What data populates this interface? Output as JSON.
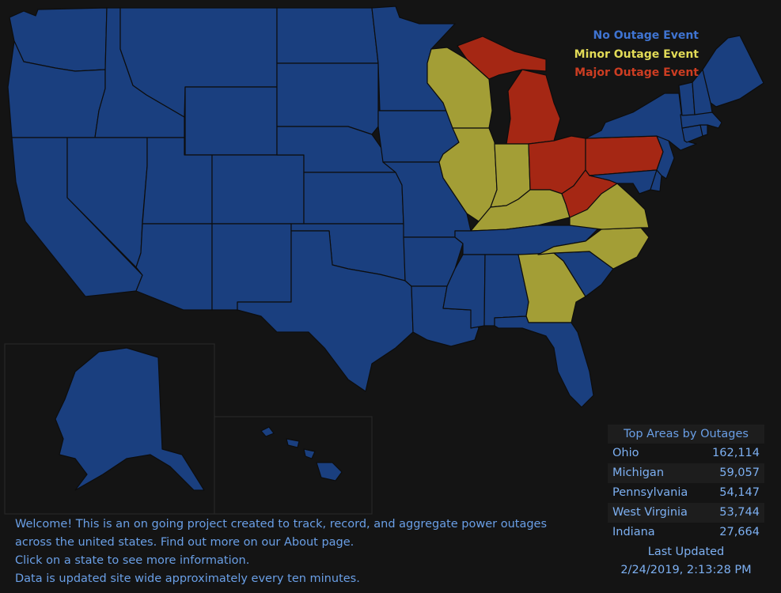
{
  "legend": {
    "none_label": "No Outage Event",
    "minor_label": "Minor Outage Event",
    "major_label": "Major Outage Event"
  },
  "colors": {
    "background": "#141414",
    "none": "#1a3f7f",
    "minor": "#a39e36",
    "major": "#a52714",
    "legend_none": "#3f74d2",
    "legend_minor": "#e2db57",
    "legend_major": "#cd3d22"
  },
  "top_areas": {
    "title": "Top Areas by Outages",
    "rows": [
      {
        "area": "Ohio",
        "outages": "162,114"
      },
      {
        "area": "Michigan",
        "outages": "59,057"
      },
      {
        "area": "Pennsylvania",
        "outages": "54,147"
      },
      {
        "area": "West Virginia",
        "outages": "53,744"
      },
      {
        "area": "Indiana",
        "outages": "27,664"
      }
    ],
    "last_updated_label": "Last Updated",
    "last_updated_value": "2/24/2019, 2:13:28 PM"
  },
  "welcome": {
    "line1": "Welcome! This is an on going project created to track, record, and aggregate power outages",
    "line2": "across the united states. Find out more on our About page.",
    "line3": "Click on a state to see more information.",
    "line4": "Data is updated site wide approximately every ten minutes."
  },
  "states": [
    {
      "name": "Washington",
      "status": "none"
    },
    {
      "name": "Oregon",
      "status": "none"
    },
    {
      "name": "California",
      "status": "none"
    },
    {
      "name": "Idaho",
      "status": "none"
    },
    {
      "name": "Nevada",
      "status": "none"
    },
    {
      "name": "Montana",
      "status": "none"
    },
    {
      "name": "Wyoming",
      "status": "none"
    },
    {
      "name": "Utah",
      "status": "none"
    },
    {
      "name": "Arizona",
      "status": "none"
    },
    {
      "name": "Colorado",
      "status": "none"
    },
    {
      "name": "New Mexico",
      "status": "none"
    },
    {
      "name": "North Dakota",
      "status": "none"
    },
    {
      "name": "South Dakota",
      "status": "none"
    },
    {
      "name": "Nebraska",
      "status": "none"
    },
    {
      "name": "Kansas",
      "status": "none"
    },
    {
      "name": "Oklahoma",
      "status": "none"
    },
    {
      "name": "Texas",
      "status": "none"
    },
    {
      "name": "Minnesota",
      "status": "none"
    },
    {
      "name": "Iowa",
      "status": "none"
    },
    {
      "name": "Missouri",
      "status": "none"
    },
    {
      "name": "Arkansas",
      "status": "none"
    },
    {
      "name": "Louisiana",
      "status": "none"
    },
    {
      "name": "Wisconsin",
      "status": "minor"
    },
    {
      "name": "Illinois",
      "status": "minor"
    },
    {
      "name": "Michigan",
      "status": "major"
    },
    {
      "name": "Indiana",
      "status": "minor"
    },
    {
      "name": "Ohio",
      "status": "major"
    },
    {
      "name": "Kentucky",
      "status": "minor"
    },
    {
      "name": "Tennessee",
      "status": "none"
    },
    {
      "name": "Mississippi",
      "status": "none"
    },
    {
      "name": "Alabama",
      "status": "none"
    },
    {
      "name": "Georgia",
      "status": "minor"
    },
    {
      "name": "Florida",
      "status": "none"
    },
    {
      "name": "South Carolina",
      "status": "none"
    },
    {
      "name": "North Carolina",
      "status": "minor"
    },
    {
      "name": "Virginia",
      "status": "minor"
    },
    {
      "name": "West Virginia",
      "status": "major"
    },
    {
      "name": "Pennsylvania",
      "status": "major"
    },
    {
      "name": "Maryland",
      "status": "none"
    },
    {
      "name": "Delaware",
      "status": "none"
    },
    {
      "name": "New Jersey",
      "status": "none"
    },
    {
      "name": "New York",
      "status": "none"
    },
    {
      "name": "Connecticut",
      "status": "none"
    },
    {
      "name": "Rhode Island",
      "status": "none"
    },
    {
      "name": "Massachusetts",
      "status": "none"
    },
    {
      "name": "Vermont",
      "status": "none"
    },
    {
      "name": "New Hampshire",
      "status": "none"
    },
    {
      "name": "Maine",
      "status": "none"
    },
    {
      "name": "Alaska",
      "status": "none"
    },
    {
      "name": "Hawaii",
      "status": "none"
    }
  ]
}
